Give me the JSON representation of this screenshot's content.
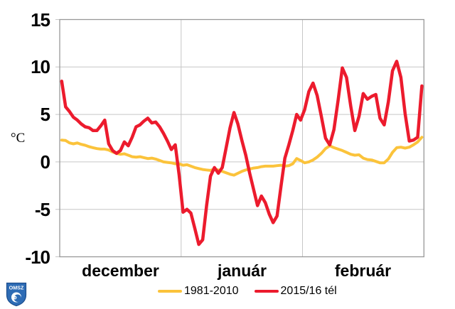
{
  "chart_data": {
    "type": "line",
    "ylabel": "°C",
    "ylim": [
      -10,
      15
    ],
    "yticks": [
      15,
      10,
      5,
      0,
      -5,
      -10
    ],
    "ytick_labels": [
      "15",
      "10",
      "5",
      "0",
      "-5",
      "-10"
    ],
    "categories": [
      "december",
      "január",
      "február"
    ],
    "days_per_month": [
      31,
      31,
      29
    ],
    "grid": true,
    "legend_position": "bottom",
    "axis_color": "#989898",
    "grid_color": "#c6c6c6",
    "series": [
      {
        "name": "1981-2010",
        "color": "#FBC33B",
        "values": [
          2.3,
          2.25,
          2.0,
          1.9,
          2.0,
          1.85,
          1.75,
          1.6,
          1.5,
          1.4,
          1.35,
          1.35,
          1.25,
          1.05,
          0.9,
          0.8,
          0.85,
          0.7,
          0.55,
          0.5,
          0.55,
          0.45,
          0.35,
          0.4,
          0.3,
          0.15,
          0.0,
          -0.05,
          -0.1,
          -0.2,
          -0.2,
          -0.35,
          -0.3,
          -0.45,
          -0.6,
          -0.7,
          -0.8,
          -0.85,
          -0.9,
          -0.75,
          -0.85,
          -1.0,
          -1.15,
          -1.3,
          -1.4,
          -1.2,
          -1.0,
          -0.85,
          -0.75,
          -0.65,
          -0.6,
          -0.5,
          -0.45,
          -0.45,
          -0.45,
          -0.4,
          -0.35,
          -0.45,
          -0.4,
          -0.2,
          0.35,
          0.15,
          -0.1,
          0.0,
          0.2,
          0.5,
          0.9,
          1.4,
          1.7,
          1.5,
          1.35,
          1.2,
          1.0,
          0.8,
          0.7,
          0.75,
          0.4,
          0.25,
          0.2,
          0.05,
          -0.1,
          -0.1,
          0.3,
          1.0,
          1.5,
          1.55,
          1.45,
          1.55,
          1.8,
          2.1,
          2.6
        ]
      },
      {
        "name": "2015/16 tél",
        "color": "#EC1B2D",
        "values": [
          8.5,
          5.8,
          5.3,
          4.7,
          4.4,
          4.0,
          3.7,
          3.6,
          3.3,
          3.3,
          3.8,
          4.4,
          1.9,
          1.2,
          0.9,
          1.2,
          2.1,
          1.7,
          2.6,
          3.7,
          3.9,
          4.3,
          4.6,
          4.1,
          4.2,
          3.7,
          3.0,
          2.2,
          1.3,
          1.8,
          -1.4,
          -5.3,
          -5.0,
          -5.4,
          -7.0,
          -8.7,
          -8.2,
          -4.6,
          -1.5,
          -0.6,
          -1.2,
          -0.6,
          1.5,
          3.6,
          5.2,
          4.0,
          2.3,
          0.7,
          -1.2,
          -2.9,
          -4.6,
          -3.6,
          -4.3,
          -5.5,
          -6.4,
          -5.7,
          -2.6,
          0.4,
          1.8,
          3.3,
          5.0,
          4.4,
          5.5,
          7.4,
          8.3,
          7.0,
          4.8,
          2.5,
          1.8,
          3.4,
          6.5,
          9.9,
          8.9,
          5.9,
          3.3,
          4.8,
          7.2,
          6.6,
          6.9,
          7.1,
          4.6,
          3.9,
          6.3,
          9.6,
          10.6,
          8.9,
          5.1,
          2.2,
          2.3,
          2.6,
          8.0
        ]
      }
    ]
  },
  "logo": {
    "text": "OMSZ",
    "shield_color": "#2e6cb5",
    "shield_edge": "#1c4e8e"
  }
}
